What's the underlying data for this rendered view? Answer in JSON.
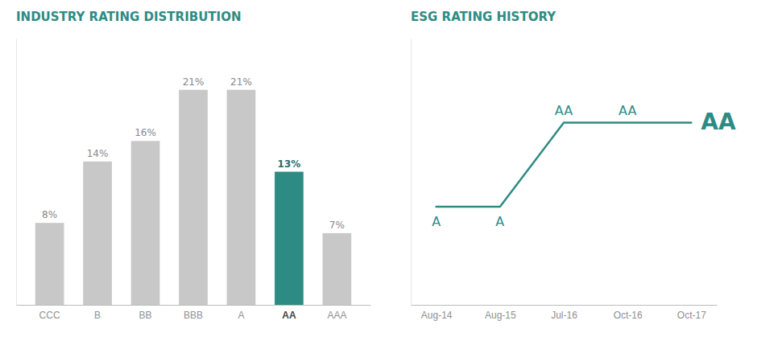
{
  "chart_data": [
    {
      "type": "bar",
      "title": "INDUSTRY RATING DISTRIBUTION",
      "categories": [
        "CCC",
        "B",
        "BB",
        "BBB",
        "A",
        "AA",
        "AAA"
      ],
      "values": [
        8,
        14,
        16,
        21,
        21,
        13,
        7
      ],
      "value_labels": [
        "8%",
        "14%",
        "16%",
        "21%",
        "21%",
        "13%",
        "7%"
      ],
      "data_labels": true,
      "colors": [
        "#c8c8c8",
        "#c8c8c8",
        "#c8c8c8",
        "#c8c8c8",
        "#c8c8c8",
        "#2e8b84",
        "#c8c8c8"
      ],
      "ylim": [
        0,
        26
      ],
      "tick_labels": "x"
    },
    {
      "type": "line",
      "title": "ESG RATING HISTORY",
      "categories": [
        "Aug-14",
        "Aug-15",
        "Jul-16",
        "Oct-16",
        "Oct-17"
      ],
      "values": [
        1.0,
        1.0,
        1.6,
        1.6,
        1.6
      ],
      "annotations": [
        "A",
        "A",
        "AA",
        "AA",
        "AA"
      ],
      "color": "#2e8b84",
      "ylim": [
        0.3,
        2.2
      ],
      "tick_labels": "x"
    }
  ]
}
